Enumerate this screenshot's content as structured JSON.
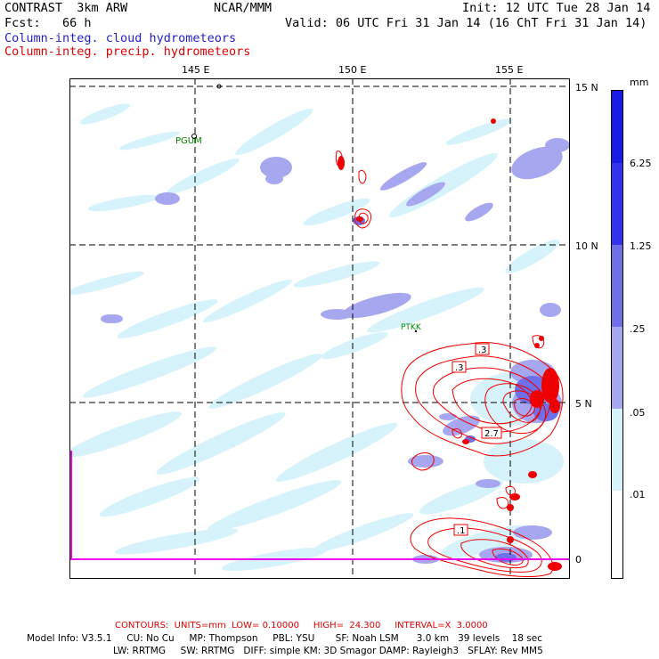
{
  "header": {
    "left1": "CONTRAST  3km ARW",
    "center1": "NCAR/MMM",
    "right1": "Init: 12 UTC Tue 28 Jan 14",
    "left2": "Fcst:   66 h",
    "right2": "Valid: 06 UTC Fri 31 Jan 14 (16 ChT Fri 31 Jan 14)",
    "line3": "Column-integ. cloud hydrometeors",
    "line4": "Column-integ. precip. hydrometeors"
  },
  "map": {
    "lon_labels": [
      "145 E",
      "150 E",
      "155 E"
    ],
    "lat_labels": [
      "15 N",
      "10 N",
      "5 N",
      "0"
    ],
    "stations": [
      "PGUM",
      "PTKK"
    ],
    "contour_labels": [
      ".3",
      ".3",
      "2.7",
      ".1"
    ]
  },
  "colorbar": {
    "unit": "mm",
    "labels": [
      "6.25",
      "1.25",
      ".25",
      ".05",
      ".01"
    ],
    "colors": [
      "#1a1ae6",
      "#3333ee",
      "#6f6fe8",
      "#a7a7f0",
      "#d6f3fb",
      "#ffffff"
    ]
  },
  "footer": {
    "contours": "CONTOURS:  UNITS=mm  LOW= 0.10000     HIGH=  24.300     INTERVAL=X  3.0000",
    "model1": "Model Info: V3.5.1     CU: No Cu     MP: Thompson     PBL: YSU       SF: Noah LSM      3.0 km   39 levels    18 sec",
    "model2": "LW: RRTMG     SW: RRTMG   DIFF: simple KM: 3D Smagor DAMP: Rayleigh3   SFLAY: Rev MM5"
  },
  "colors": {
    "contour": "#ee0000",
    "magenta": "#ee00ee",
    "cloud_light": "#d6f3fb",
    "cloud_mid": "#a7a7f0"
  }
}
